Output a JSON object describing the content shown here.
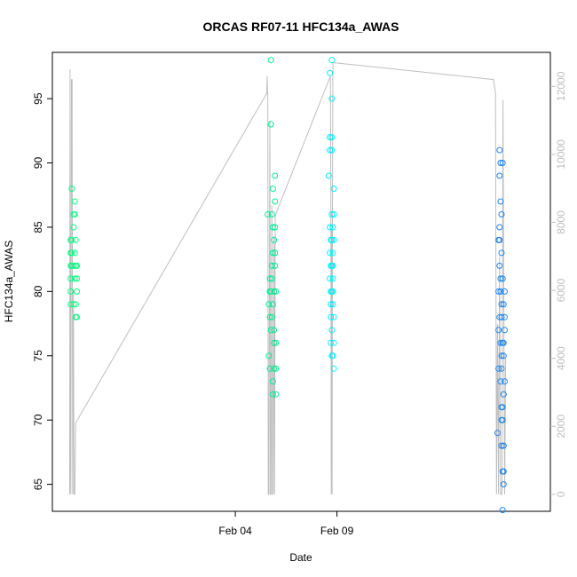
{
  "chart_data": {
    "type": "scatter",
    "title": "ORCAS RF07-11 HFC134a_AWAS",
    "xlabel": "Date",
    "ylabel": "HFC134a_AWAS",
    "xlim_days": [
      -6.0,
      18.5
    ],
    "ylim": [
      62.9,
      98.6
    ],
    "y_ticks": [
      65,
      70,
      75,
      80,
      85,
      90,
      95
    ],
    "x_ticks": [
      {
        "day": 3,
        "label": "Feb 04"
      },
      {
        "day": 8,
        "label": "Feb 09"
      }
    ],
    "y2_ticks": [
      0,
      2000,
      4000,
      6000,
      8000,
      10000,
      12000
    ],
    "y2lim": [
      -500,
      13000
    ],
    "colors": {
      "flight1": "#00FF7F",
      "flight2": "#00EE90",
      "flight3": "#00F0FF",
      "flight4": "#1C86EE",
      "altitude_line": "#BEBEBE"
    },
    "series": [
      {
        "color": "flight1",
        "points": [
          [
            -5.1,
            79
          ],
          [
            -5.1,
            80
          ],
          [
            -5.1,
            81
          ],
          [
            -5.1,
            82
          ],
          [
            -5.1,
            83
          ],
          [
            -5.1,
            84
          ],
          [
            -5.05,
            82
          ],
          [
            -5.05,
            83
          ],
          [
            -5.05,
            84
          ],
          [
            -5.05,
            88
          ],
          [
            -4.95,
            82
          ],
          [
            -4.95,
            85
          ],
          [
            -4.95,
            86
          ],
          [
            -4.95,
            79
          ],
          [
            -4.9,
            81
          ],
          [
            -4.9,
            83
          ],
          [
            -4.9,
            86
          ],
          [
            -4.9,
            87
          ],
          [
            -4.85,
            78
          ],
          [
            -4.85,
            82
          ],
          [
            -4.85,
            84
          ],
          [
            -4.85,
            79
          ],
          [
            -4.8,
            78
          ],
          [
            -4.8,
            80
          ],
          [
            -4.8,
            82
          ],
          [
            -4.8,
            81
          ]
        ]
      },
      {
        "color": "flight2",
        "points": [
          [
            4.6,
            86
          ],
          [
            4.65,
            79
          ],
          [
            4.65,
            75
          ],
          [
            4.7,
            78
          ],
          [
            4.7,
            80
          ],
          [
            4.7,
            81
          ],
          [
            4.7,
            74
          ],
          [
            4.75,
            80
          ],
          [
            4.75,
            77
          ],
          [
            4.75,
            93
          ],
          [
            4.75,
            98
          ],
          [
            4.8,
            78
          ],
          [
            4.8,
            81
          ],
          [
            4.8,
            82
          ],
          [
            4.8,
            86
          ],
          [
            4.85,
            85
          ],
          [
            4.85,
            83
          ],
          [
            4.85,
            79
          ],
          [
            4.85,
            88
          ],
          [
            4.85,
            72
          ],
          [
            4.9,
            84
          ],
          [
            4.9,
            80
          ],
          [
            4.9,
            77
          ],
          [
            4.9,
            74
          ],
          [
            4.9,
            76
          ],
          [
            4.95,
            82
          ],
          [
            4.95,
            89
          ],
          [
            4.95,
            87
          ],
          [
            4.95,
            85
          ],
          [
            4.95,
            83
          ],
          [
            5.0,
            80
          ],
          [
            5.0,
            76
          ],
          [
            5.0,
            74
          ],
          [
            5.0,
            72
          ],
          [
            4.85,
            73
          ]
        ]
      },
      {
        "color": "flight3",
        "points": [
          [
            7.6,
            89
          ],
          [
            7.65,
            92
          ],
          [
            7.65,
            97
          ],
          [
            7.65,
            91
          ],
          [
            7.65,
            81
          ],
          [
            7.65,
            83
          ],
          [
            7.65,
            85
          ],
          [
            7.7,
            78
          ],
          [
            7.7,
            80
          ],
          [
            7.7,
            82
          ],
          [
            7.7,
            76
          ],
          [
            7.7,
            79
          ],
          [
            7.75,
            98
          ],
          [
            7.75,
            95
          ],
          [
            7.75,
            92
          ],
          [
            7.75,
            91
          ],
          [
            7.75,
            86
          ],
          [
            7.75,
            84
          ],
          [
            7.75,
            82
          ],
          [
            7.75,
            80
          ],
          [
            7.75,
            77
          ],
          [
            7.75,
            75
          ],
          [
            7.8,
            83
          ],
          [
            7.8,
            81
          ],
          [
            7.8,
            79
          ],
          [
            7.8,
            85
          ],
          [
            7.8,
            82
          ],
          [
            7.8,
            80
          ],
          [
            7.85,
            78
          ],
          [
            7.85,
            76
          ],
          [
            7.85,
            86
          ],
          [
            7.85,
            84
          ],
          [
            7.85,
            88
          ],
          [
            7.85,
            74
          ],
          [
            7.7,
            84
          ],
          [
            7.8,
            75
          ]
        ]
      },
      {
        "color": "flight4",
        "points": [
          [
            15.9,
            69
          ],
          [
            15.95,
            74
          ],
          [
            15.95,
            77
          ],
          [
            15.95,
            80
          ],
          [
            15.95,
            84
          ],
          [
            16.0,
            78
          ],
          [
            16.0,
            82
          ],
          [
            16.0,
            85
          ],
          [
            16.0,
            89
          ],
          [
            16.0,
            91
          ],
          [
            16.0,
            84
          ],
          [
            16.05,
            90
          ],
          [
            16.05,
            87
          ],
          [
            16.05,
            81
          ],
          [
            16.05,
            76
          ],
          [
            16.05,
            73
          ],
          [
            16.05,
            80
          ],
          [
            16.1,
            86
          ],
          [
            16.1,
            83
          ],
          [
            16.1,
            79
          ],
          [
            16.1,
            78
          ],
          [
            16.1,
            75
          ],
          [
            16.1,
            74
          ],
          [
            16.1,
            70
          ],
          [
            16.1,
            68
          ],
          [
            16.15,
            90
          ],
          [
            16.15,
            81
          ],
          [
            16.15,
            76
          ],
          [
            16.15,
            71
          ],
          [
            16.15,
            66
          ],
          [
            16.15,
            63
          ],
          [
            16.2,
            79
          ],
          [
            16.2,
            76
          ],
          [
            16.2,
            72
          ],
          [
            16.2,
            68
          ],
          [
            16.2,
            65
          ],
          [
            16.2,
            66
          ],
          [
            16.2,
            75
          ],
          [
            16.25,
            80
          ],
          [
            16.25,
            78
          ],
          [
            16.25,
            77
          ],
          [
            16.25,
            73
          ],
          [
            16.1,
            71
          ],
          [
            16.15,
            70
          ]
        ]
      }
    ],
    "altitude": [
      [
        -5.15,
        0
      ],
      [
        -5.13,
        12500
      ],
      [
        -5.11,
        1000
      ],
      [
        -5.09,
        0
      ],
      [
        -5.06,
        12200
      ],
      [
        -5.03,
        12200
      ],
      [
        -5.0,
        0
      ],
      [
        -4.96,
        6000
      ],
      [
        -4.94,
        0
      ],
      [
        -4.9,
        0
      ],
      [
        -4.85,
        2100
      ],
      [
        4.55,
        11800
      ],
      [
        4.57,
        12300
      ],
      [
        4.6,
        11600
      ],
      [
        4.62,
        0
      ],
      [
        4.65,
        0
      ],
      [
        4.66,
        2000
      ],
      [
        4.7,
        11000
      ],
      [
        4.73,
        0
      ],
      [
        4.76,
        0
      ],
      [
        4.8,
        8500
      ],
      [
        4.83,
        0
      ],
      [
        4.86,
        0
      ],
      [
        4.9,
        7600
      ],
      [
        4.93,
        0
      ],
      [
        4.96,
        8200
      ],
      [
        7.68,
        12300
      ],
      [
        7.7,
        9000
      ],
      [
        7.72,
        0
      ],
      [
        7.74,
        7800
      ],
      [
        7.76,
        0
      ],
      [
        7.78,
        8000
      ],
      [
        7.8,
        12700
      ],
      [
        15.7,
        12200
      ],
      [
        15.8,
        11800
      ],
      [
        15.85,
        0
      ],
      [
        15.9,
        5000
      ],
      [
        15.95,
        0
      ],
      [
        16.0,
        7000
      ],
      [
        16.05,
        0
      ],
      [
        16.12,
        0
      ],
      [
        16.17,
        11600
      ],
      [
        16.25,
        0
      ],
      [
        16.3,
        4000
      ]
    ]
  }
}
